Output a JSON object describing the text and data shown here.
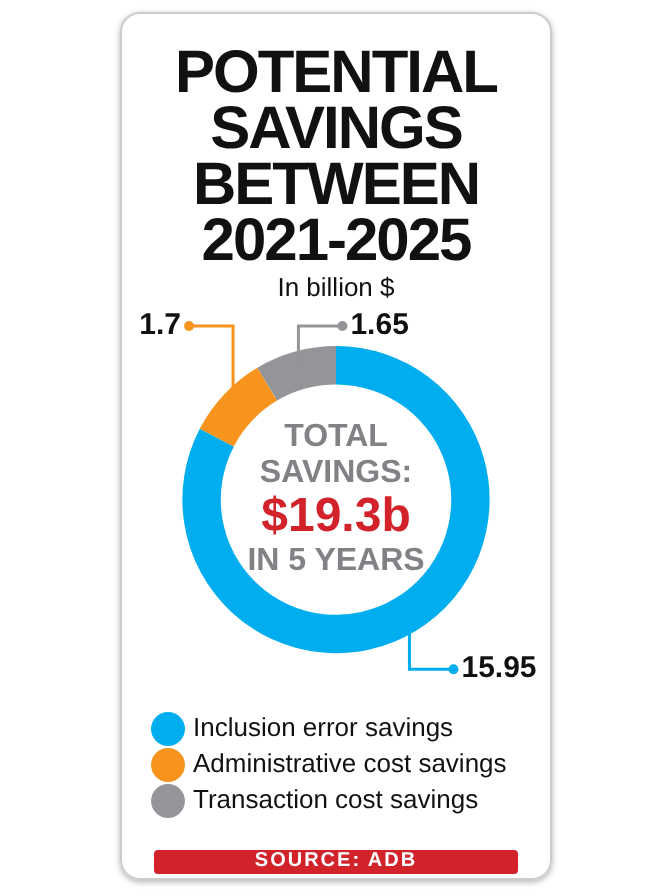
{
  "chart_data": {
    "type": "donut",
    "title": "POTENTIAL SAVINGS BETWEEN 2021-2025",
    "subtitle": "In billion $",
    "categories": [
      "Inclusion error savings",
      "Administrative cost savings",
      "Transaction cost savings"
    ],
    "values": [
      15.95,
      1.7,
      1.65
    ],
    "colors": [
      "#00aeef",
      "#f7941d",
      "#939598"
    ],
    "data_labels": true,
    "legend": "bottom",
    "annotations": [
      "TOTAL SAVINGS:",
      "$19.3b",
      "IN 5 YEARS",
      "SOURCE: ADB"
    ]
  }
}
